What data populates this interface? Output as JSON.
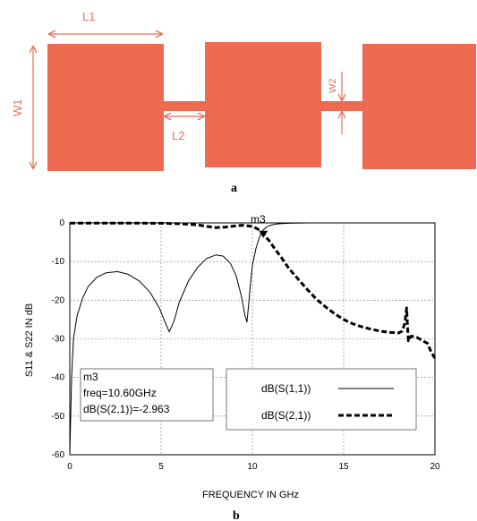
{
  "panel_a": {
    "caption": "a",
    "labels": {
      "l1": "L1",
      "l2": "L2",
      "w1": "W1",
      "w2": "W2"
    },
    "color": "#ee6b52"
  },
  "panel_b": {
    "caption": "b"
  },
  "marker": {
    "name": "m3",
    "freq_text": "freq=10.60GHz",
    "value_text": "dB(S(2,1))=-2.963",
    "freq": 10.6,
    "value": -2.963
  },
  "chart_data": {
    "type": "line",
    "xlabel": "FREQUENCY IN GHz",
    "ylabel": "S11 & S22 IN dB",
    "xlim": [
      0,
      20
    ],
    "ylim": [
      -60,
      0
    ],
    "x_ticks": [
      "0",
      "5",
      "10",
      "15",
      "20"
    ],
    "y_ticks": [
      "0",
      "-10",
      "-20",
      "-30",
      "-40",
      "-50",
      "-60"
    ],
    "grid": true,
    "legend_position": "bottom-right",
    "series": [
      {
        "name": "dB(S(1,1))",
        "style": "solid",
        "x": [
          0,
          0.1,
          0.2,
          0.4,
          0.7,
          1.0,
          1.5,
          2.0,
          2.6,
          3.2,
          3.8,
          4.4,
          4.9,
          5.2,
          5.45,
          5.7,
          6.0,
          6.5,
          7.0,
          7.5,
          8.0,
          8.4,
          8.8,
          9.1,
          9.4,
          9.6,
          9.7,
          9.8,
          9.9,
          10.0,
          10.2,
          10.4,
          10.6,
          10.8,
          11.0,
          11.3,
          11.7,
          12.2,
          12.7,
          13.2
        ],
        "y": [
          -60,
          -40,
          -30,
          -24,
          -19.5,
          -16.5,
          -14,
          -12.9,
          -12.6,
          -13.3,
          -15,
          -18,
          -22,
          -25.5,
          -28.2,
          -25.5,
          -20.5,
          -15,
          -11.5,
          -9.2,
          -8.3,
          -8.6,
          -10.5,
          -13.5,
          -19,
          -24,
          -25.7,
          -21,
          -15.5,
          -11,
          -6.5,
          -3.5,
          -1.8,
          -1.0,
          -0.6,
          -0.3,
          -0.15,
          -0.05,
          -0.02,
          0
        ]
      },
      {
        "name": "dB(S(2,1))",
        "style": "dashed",
        "x": [
          0,
          1,
          2,
          3,
          4,
          5,
          6,
          7,
          7.5,
          8,
          8.5,
          9,
          9.5,
          10,
          10.3,
          10.6,
          10.9,
          11.2,
          11.6,
          12,
          12.5,
          13,
          13.5,
          14,
          14.5,
          15,
          15.5,
          16,
          16.5,
          17,
          17.5,
          18,
          18.2,
          18.35,
          18.45,
          18.5,
          18.55,
          18.7,
          19,
          19.3,
          19.6,
          19.8,
          20
        ],
        "y": [
          -0.05,
          -0.05,
          -0.05,
          -0.05,
          -0.07,
          -0.1,
          -0.2,
          -0.5,
          -0.9,
          -1.2,
          -1.1,
          -0.8,
          -0.6,
          -0.9,
          -1.6,
          -2.963,
          -4.5,
          -6.5,
          -9,
          -11.8,
          -14.5,
          -17.2,
          -19.7,
          -21.7,
          -23.5,
          -25,
          -26.1,
          -26.9,
          -27.5,
          -28,
          -28.3,
          -28.5,
          -28,
          -26,
          -22,
          -27,
          -30.5,
          -29.3,
          -29.6,
          -30.4,
          -31.2,
          -33.5,
          -35
        ]
      }
    ]
  }
}
